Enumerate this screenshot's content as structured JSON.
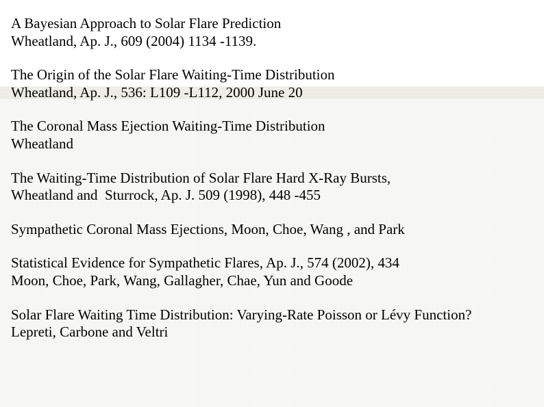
{
  "page": {
    "background_color": "#ffffff",
    "texture_colors": [
      "#f1f1ee",
      "#ededea"
    ],
    "band_colors": [
      "#dcdccf",
      "#efeee6"
    ],
    "text_color": "#000000",
    "font_family": "Times New Roman",
    "font_size_pt": 16
  },
  "references": [
    {
      "line1": "A Bayesian Approach to Solar Flare Prediction",
      "line2": "Wheatland, Ap. J., 609 (2004) 1134 -1139."
    },
    {
      "line1": "The Origin of the Solar Flare Waiting-Time Distribution",
      "line2": "Wheatland, Ap. J., 536: L109 -L112, 2000 June 20"
    },
    {
      "line1": "The Coronal Mass Ejection Waiting-Time Distribution",
      "line2": "Wheatland"
    },
    {
      "line1": "The Waiting-Time Distribution of Solar Flare Hard X-Ray Bursts,",
      "line2": "Wheatland and  Sturrock, Ap. J. 509 (1998), 448 -455"
    },
    {
      "line1": "Sympathetic Coronal Mass Ejections, Moon, Choe, Wang , and Park",
      "line2": ""
    },
    {
      "line1": "Statistical Evidence for Sympathetic Flares, Ap. J., 574 (2002), 434",
      "line2": "Moon, Choe, Park, Wang, Gallagher, Chae, Yun and Goode"
    },
    {
      "line1": "Solar Flare Waiting Time Distribution: Varying-Rate Poisson or Lévy Function?",
      "line2": "Lepreti, Carbone and Veltri"
    }
  ]
}
